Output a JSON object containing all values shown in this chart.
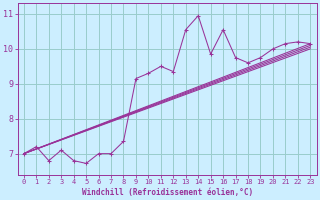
{
  "xlabel": "Windchill (Refroidissement éolien,°C)",
  "bg_color": "#cceeff",
  "line_color": "#993399",
  "grid_color": "#99cccc",
  "xlim": [
    -0.5,
    23.5
  ],
  "ylim": [
    6.4,
    11.3
  ],
  "yticks": [
    7,
    8,
    9,
    10,
    11
  ],
  "xticks": [
    0,
    1,
    2,
    3,
    4,
    5,
    6,
    7,
    8,
    9,
    10,
    11,
    12,
    13,
    14,
    15,
    16,
    17,
    18,
    19,
    20,
    21,
    22,
    23
  ],
  "series": [
    [
      0,
      7.0
    ],
    [
      1,
      7.2
    ],
    [
      2,
      6.8
    ],
    [
      3,
      7.1
    ],
    [
      4,
      6.8
    ],
    [
      5,
      6.72
    ],
    [
      6,
      7.0
    ],
    [
      7,
      7.0
    ],
    [
      8,
      7.35
    ],
    [
      9,
      9.15
    ],
    [
      10,
      9.3
    ],
    [
      11,
      9.5
    ],
    [
      12,
      9.35
    ],
    [
      13,
      10.55
    ],
    [
      14,
      10.95
    ],
    [
      15,
      9.85
    ],
    [
      16,
      10.55
    ],
    [
      17,
      9.75
    ],
    [
      18,
      9.6
    ],
    [
      19,
      9.75
    ],
    [
      20,
      10.0
    ],
    [
      21,
      10.15
    ],
    [
      22,
      10.2
    ],
    [
      23,
      10.15
    ]
  ],
  "trend_lines": [
    [
      [
        0,
        7.0
      ],
      [
        23,
        10.15
      ]
    ],
    [
      [
        0,
        7.0
      ],
      [
        23,
        10.1
      ]
    ],
    [
      [
        0,
        7.0
      ],
      [
        23,
        10.05
      ]
    ],
    [
      [
        0,
        7.0
      ],
      [
        23,
        10.0
      ]
    ]
  ]
}
